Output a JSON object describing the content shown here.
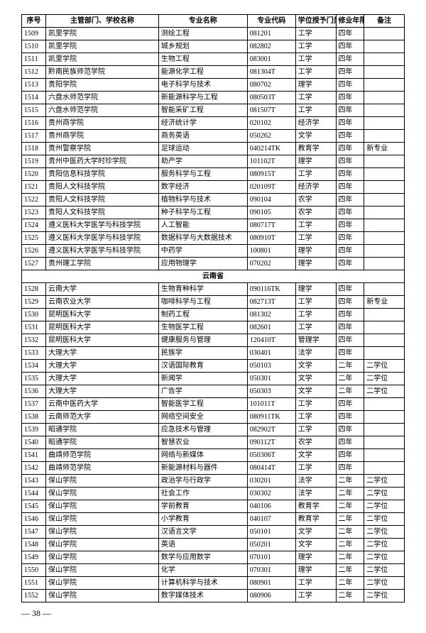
{
  "headers": {
    "seq": "序号",
    "school": "主管部门、学校名称",
    "major": "专业名称",
    "code": "专业代码",
    "degree": "学位授予门类",
    "years": "修业年限",
    "remark": "备注"
  },
  "section_label": "云南省",
  "page_number": "— 38 —",
  "rows": [
    {
      "seq": "1509",
      "school": "凯里学院",
      "major": "测绘工程",
      "code": "081201",
      "degree": "工学",
      "years": "四年",
      "remark": ""
    },
    {
      "seq": "1510",
      "school": "凯里学院",
      "major": "城乡规划",
      "code": "082802",
      "degree": "工学",
      "years": "四年",
      "remark": ""
    },
    {
      "seq": "1511",
      "school": "凯里学院",
      "major": "生物工程",
      "code": "083001",
      "degree": "工学",
      "years": "四年",
      "remark": ""
    },
    {
      "seq": "1512",
      "school": "黔南民族师范学院",
      "major": "能源化学工程",
      "code": "081304T",
      "degree": "工学",
      "years": "四年",
      "remark": ""
    },
    {
      "seq": "1513",
      "school": "贵阳学院",
      "major": "电子科学与技术",
      "code": "080702",
      "degree": "理学",
      "years": "四年",
      "remark": ""
    },
    {
      "seq": "1514",
      "school": "六盘水师范学院",
      "major": "新能源科学与工程",
      "code": "080503T",
      "degree": "工学",
      "years": "四年",
      "remark": ""
    },
    {
      "seq": "1515",
      "school": "六盘水师范学院",
      "major": "智能采矿工程",
      "code": "081507T",
      "degree": "工学",
      "years": "四年",
      "remark": ""
    },
    {
      "seq": "1516",
      "school": "贵州商学院",
      "major": "经济统计学",
      "code": "020102",
      "degree": "经济学",
      "years": "四年",
      "remark": ""
    },
    {
      "seq": "1517",
      "school": "贵州商学院",
      "major": "商务英语",
      "code": "050262",
      "degree": "文学",
      "years": "四年",
      "remark": ""
    },
    {
      "seq": "1518",
      "school": "贵州警察学院",
      "major": "足球运动",
      "code": "040214TK",
      "degree": "教育学",
      "years": "四年",
      "remark": "新专业"
    },
    {
      "seq": "1519",
      "school": "贵州中医药大学时珍学院",
      "major": "助产学",
      "code": "101102T",
      "degree": "理学",
      "years": "四年",
      "remark": ""
    },
    {
      "seq": "1520",
      "school": "贵阳信息科技学院",
      "major": "服务科学与工程",
      "code": "080915T",
      "degree": "工学",
      "years": "四年",
      "remark": ""
    },
    {
      "seq": "1521",
      "school": "贵阳人文科技学院",
      "major": "数字经济",
      "code": "020109T",
      "degree": "经济学",
      "years": "四年",
      "remark": ""
    },
    {
      "seq": "1522",
      "school": "贵阳人文科技学院",
      "major": "植物科学与技术",
      "code": "090104",
      "degree": "农学",
      "years": "四年",
      "remark": ""
    },
    {
      "seq": "1523",
      "school": "贵阳人文科技学院",
      "major": "种子科学与工程",
      "code": "090105",
      "degree": "农学",
      "years": "四年",
      "remark": ""
    },
    {
      "seq": "1524",
      "school": "遵义医科大学医学与科技学院",
      "major": "人工智能",
      "code": "080717T",
      "degree": "工学",
      "years": "四年",
      "remark": ""
    },
    {
      "seq": "1525",
      "school": "遵义医科大学医学与科技学院",
      "major": "数据科学与大数据技术",
      "code": "080910T",
      "degree": "工学",
      "years": "四年",
      "remark": ""
    },
    {
      "seq": "1526",
      "school": "遵义医科大学医学与科技学院",
      "major": "中药学",
      "code": "100801",
      "degree": "理学",
      "years": "四年",
      "remark": ""
    },
    {
      "seq": "1527",
      "school": "贵州理工学院",
      "major": "应用物理学",
      "code": "070202",
      "degree": "理学",
      "years": "四年",
      "remark": ""
    }
  ],
  "rows2": [
    {
      "seq": "1528",
      "school": "云南大学",
      "major": "生物育种科学",
      "code": "090116TK",
      "degree": "理学",
      "years": "四年",
      "remark": ""
    },
    {
      "seq": "1529",
      "school": "云南农业大学",
      "major": "咖啡科学与工程",
      "code": "082713T",
      "degree": "工学",
      "years": "四年",
      "remark": "新专业"
    },
    {
      "seq": "1530",
      "school": "昆明医科大学",
      "major": "制药工程",
      "code": "081302",
      "degree": "工学",
      "years": "四年",
      "remark": ""
    },
    {
      "seq": "1531",
      "school": "昆明医科大学",
      "major": "生物医学工程",
      "code": "082601",
      "degree": "工学",
      "years": "四年",
      "remark": ""
    },
    {
      "seq": "1532",
      "school": "昆明医科大学",
      "major": "健康服务与管理",
      "code": "120410T",
      "degree": "管理学",
      "years": "四年",
      "remark": ""
    },
    {
      "seq": "1533",
      "school": "大理大学",
      "major": "民族学",
      "code": "030401",
      "degree": "法学",
      "years": "四年",
      "remark": ""
    },
    {
      "seq": "1534",
      "school": "大理大学",
      "major": "汉语国际教育",
      "code": "050103",
      "degree": "文学",
      "years": "二年",
      "remark": "二学位"
    },
    {
      "seq": "1535",
      "school": "大理大学",
      "major": "新闻学",
      "code": "050301",
      "degree": "文学",
      "years": "二年",
      "remark": "二学位"
    },
    {
      "seq": "1536",
      "school": "大理大学",
      "major": "广告学",
      "code": "050303",
      "degree": "文学",
      "years": "二年",
      "remark": "二学位"
    },
    {
      "seq": "1537",
      "school": "云南中医药大学",
      "major": "智能医学工程",
      "code": "101011T",
      "degree": "工学",
      "years": "四年",
      "remark": ""
    },
    {
      "seq": "1538",
      "school": "云南师范大学",
      "major": "网络空间安全",
      "code": "080911TK",
      "degree": "工学",
      "years": "四年",
      "remark": ""
    },
    {
      "seq": "1539",
      "school": "昭通学院",
      "major": "应急技术与管理",
      "code": "082902T",
      "degree": "工学",
      "years": "四年",
      "remark": ""
    },
    {
      "seq": "1540",
      "school": "昭通学院",
      "major": "智慧农业",
      "code": "090112T",
      "degree": "农学",
      "years": "四年",
      "remark": ""
    },
    {
      "seq": "1541",
      "school": "曲靖师范学院",
      "major": "网络与新媒体",
      "code": "050306T",
      "degree": "文学",
      "years": "四年",
      "remark": ""
    },
    {
      "seq": "1542",
      "school": "曲靖师范学院",
      "major": "新能源材料与器件",
      "code": "080414T",
      "degree": "工学",
      "years": "四年",
      "remark": ""
    },
    {
      "seq": "1543",
      "school": "保山学院",
      "major": "政治学与行政学",
      "code": "030201",
      "degree": "法学",
      "years": "二年",
      "remark": "二学位"
    },
    {
      "seq": "1544",
      "school": "保山学院",
      "major": "社会工作",
      "code": "030302",
      "degree": "法学",
      "years": "二年",
      "remark": "二学位"
    },
    {
      "seq": "1545",
      "school": "保山学院",
      "major": "学前教育",
      "code": "040106",
      "degree": "教育学",
      "years": "二年",
      "remark": "二学位"
    },
    {
      "seq": "1546",
      "school": "保山学院",
      "major": "小学教育",
      "code": "040107",
      "degree": "教育学",
      "years": "二年",
      "remark": "二学位"
    },
    {
      "seq": "1547",
      "school": "保山学院",
      "major": "汉语言文学",
      "code": "050101",
      "degree": "文学",
      "years": "二年",
      "remark": "二学位"
    },
    {
      "seq": "1548",
      "school": "保山学院",
      "major": "英语",
      "code": "050201",
      "degree": "文学",
      "years": "二年",
      "remark": "二学位"
    },
    {
      "seq": "1549",
      "school": "保山学院",
      "major": "数学与应用数学",
      "code": "070101",
      "degree": "理学",
      "years": "二年",
      "remark": "二学位"
    },
    {
      "seq": "1550",
      "school": "保山学院",
      "major": "化学",
      "code": "070301",
      "degree": "理学",
      "years": "二年",
      "remark": "二学位"
    },
    {
      "seq": "1551",
      "school": "保山学院",
      "major": "计算机科学与技术",
      "code": "080901",
      "degree": "工学",
      "years": "二年",
      "remark": "二学位"
    },
    {
      "seq": "1552",
      "school": "保山学院",
      "major": "数字媒体技术",
      "code": "080906",
      "degree": "工学",
      "years": "二年",
      "remark": "二学位"
    }
  ]
}
